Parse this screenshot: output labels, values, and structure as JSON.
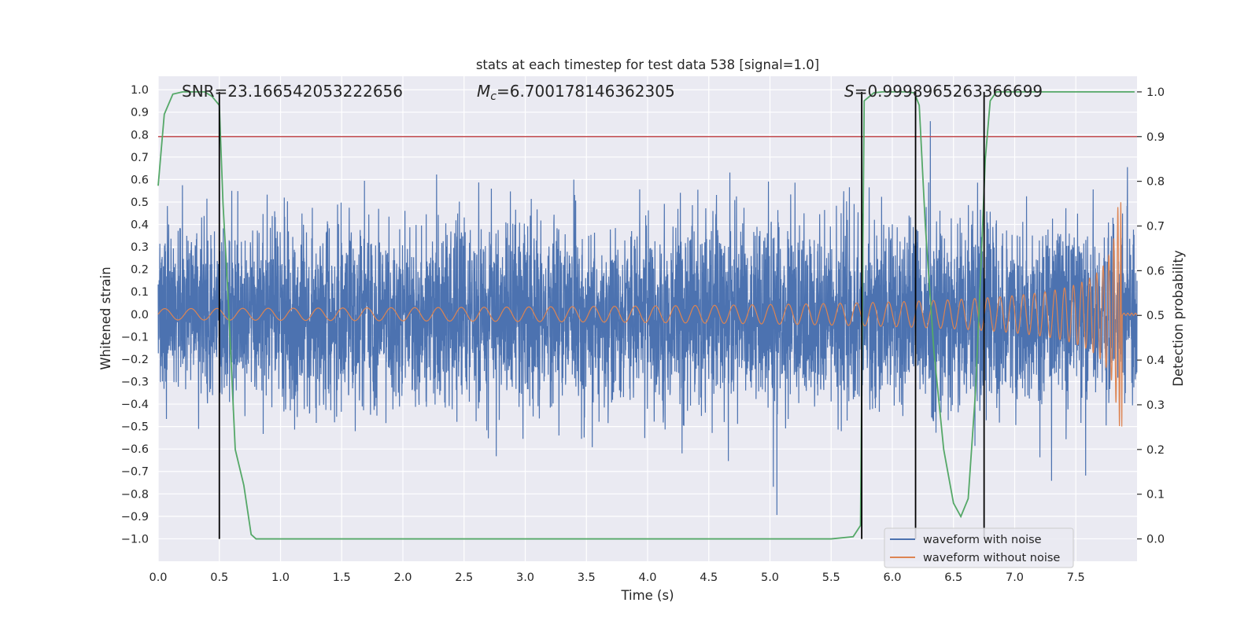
{
  "chart_data": {
    "type": "line",
    "title": "stats at each timestep for test data 538 [signal=1.0]",
    "xlabel": "Time (s)",
    "ylabel_left": "Whitened strain",
    "ylabel_right": "Detection probability",
    "xlim": [
      0.0,
      8.0
    ],
    "ylim_left": [
      -1.1,
      1.06
    ],
    "ylim_right": [
      -0.05,
      1.035
    ],
    "x_ticks": [
      "0.0",
      "0.5",
      "1.0",
      "1.5",
      "2.0",
      "2.5",
      "3.0",
      "3.5",
      "4.0",
      "4.5",
      "5.0",
      "5.5",
      "6.0",
      "6.5",
      "7.0",
      "7.5"
    ],
    "y_ticks_left": [
      "1.0",
      "0.9",
      "0.8",
      "0.7",
      "0.6",
      "0.5",
      "0.4",
      "0.3",
      "0.2",
      "0.1",
      "0.0",
      "−0.1",
      "−0.2",
      "−0.3",
      "−0.4",
      "−0.5",
      "−0.6",
      "−0.7",
      "−0.8",
      "−0.9",
      "−1.0"
    ],
    "y_ticks_right": [
      "1.0",
      "0.9",
      "0.8",
      "0.7",
      "0.6",
      "0.5",
      "0.4",
      "0.3",
      "0.2",
      "0.1",
      "0.0"
    ],
    "grid": true,
    "legend_position": "lower-right",
    "annotations": {
      "snr": "SNR=23.166542053222656",
      "mc_symbol": "M",
      "mc_sub": "c",
      "mc_value": "=6.700178146362305",
      "s_symbol": "S",
      "s_value": "=0.9998965263366699"
    },
    "threshold": {
      "value": 0.9,
      "axis": "right",
      "color": "#c44e52"
    },
    "vlines": [
      0.5,
      5.75,
      6.19,
      6.75
    ],
    "series": [
      {
        "name": "waveform with noise",
        "color": "#4c72b0",
        "kind": "noise",
        "envelope": 0.55,
        "duration": 8.0
      },
      {
        "name": "waveform without noise",
        "color": "#dd8452",
        "kind": "chirp",
        "amplitude_start": 0.025,
        "amplitude_peak": 0.5,
        "t_merge": 7.88
      },
      {
        "color": "#55a868",
        "axis": "right",
        "x": [
          0.0,
          0.05,
          0.12,
          0.2,
          0.3,
          0.38,
          0.44,
          0.5,
          0.53,
          0.57,
          0.63,
          0.7,
          0.76,
          0.8,
          1.0,
          2.0,
          3.0,
          4.0,
          5.0,
          5.5,
          5.68,
          5.74,
          5.77,
          5.85,
          5.92,
          6.0,
          6.1,
          6.18,
          6.22,
          6.27,
          6.34,
          6.42,
          6.5,
          6.56,
          6.62,
          6.68,
          6.72,
          6.76,
          6.8,
          6.85,
          7.0,
          7.5,
          7.98
        ],
        "y": [
          0.79,
          0.95,
          0.995,
          1.0,
          1.0,
          1.0,
          0.99,
          0.97,
          0.75,
          0.55,
          0.2,
          0.12,
          0.01,
          0.0,
          0.0,
          0.0,
          0.0,
          0.0,
          0.0,
          0.0,
          0.005,
          0.03,
          0.98,
          0.998,
          1.0,
          1.0,
          1.0,
          0.998,
          0.97,
          0.7,
          0.42,
          0.2,
          0.08,
          0.05,
          0.09,
          0.33,
          0.58,
          0.85,
          0.98,
          1.0,
          1.0,
          1.0,
          1.0
        ]
      }
    ]
  }
}
